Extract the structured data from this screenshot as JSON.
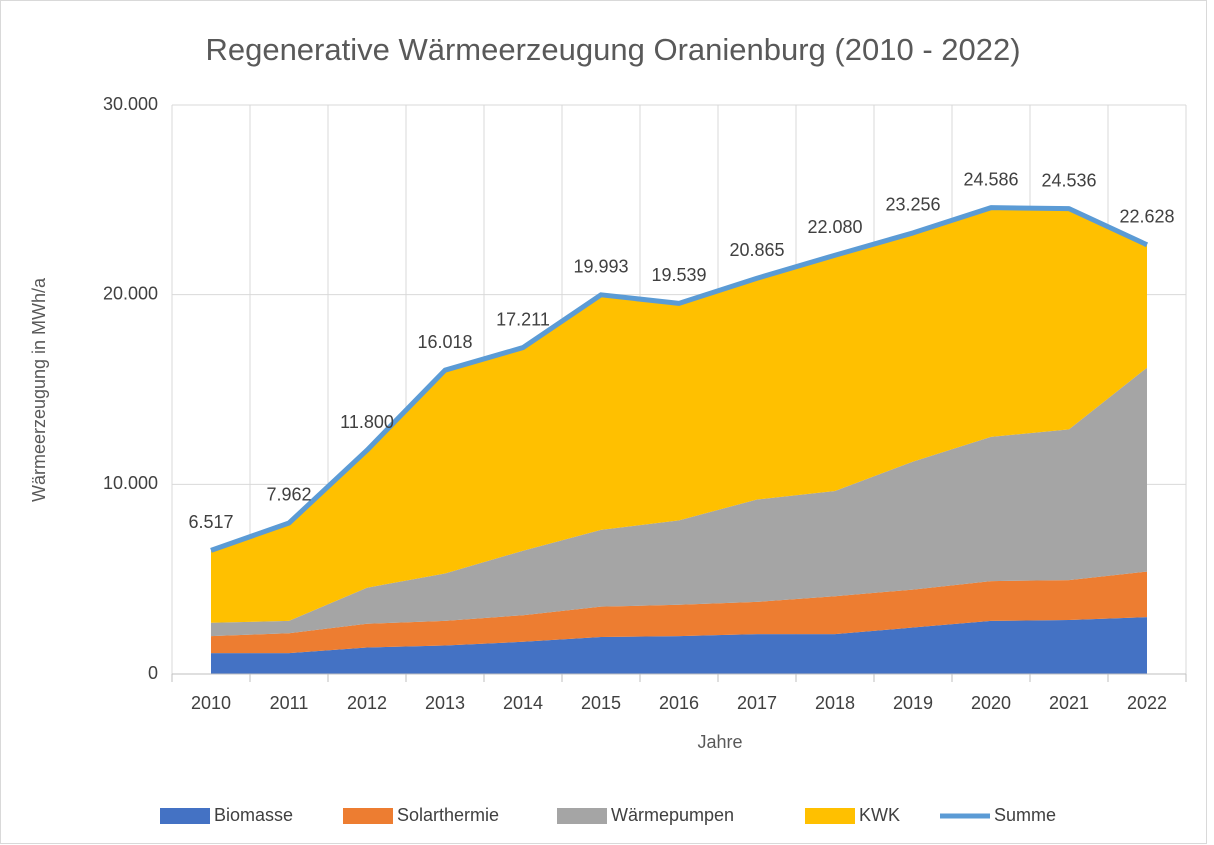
{
  "chart_data": {
    "type": "stacked_area",
    "title": "Regenerative Wärmeerzeugung Oranienburg (2010 - 2022)",
    "x_label": "Jahre",
    "y_label": "Wärmeerzeugung in MWh/a",
    "categories": [
      "2010",
      "2011",
      "2012",
      "2013",
      "2014",
      "2015",
      "2016",
      "2017",
      "2018",
      "2019",
      "2020",
      "2021",
      "2022"
    ],
    "series": [
      {
        "name": "Biomasse",
        "color": "#4472c4",
        "values": [
          1100,
          1100,
          1400,
          1500,
          1700,
          1950,
          2000,
          2100,
          2100,
          2450,
          2800,
          2850,
          3000
        ]
      },
      {
        "name": "Solarthermie",
        "color": "#ed7d31",
        "values": [
          900,
          1050,
          1250,
          1300,
          1400,
          1600,
          1650,
          1700,
          2000,
          2000,
          2100,
          2100,
          2400
        ]
      },
      {
        "name": "Wärmepumpen",
        "color": "#a5a5a5",
        "values": [
          700,
          650,
          1900,
          2500,
          3400,
          4050,
          4450,
          5400,
          5550,
          6750,
          7600,
          7950,
          10750
        ]
      },
      {
        "name": "KWK",
        "color": "#ffc000",
        "values": [
          3800,
          5150,
          7250,
          10700,
          10700,
          12400,
          11450,
          11650,
          12450,
          12050,
          12100,
          11650,
          6500
        ]
      }
    ],
    "total": {
      "name": "Summe",
      "color": "#5b9bd5",
      "values": [
        6517,
        7962,
        11800,
        16018,
        17211,
        19993,
        19539,
        20865,
        22080,
        23256,
        24586,
        24536,
        22628
      ],
      "value_labels": [
        "6.517",
        "7.962",
        "11.800",
        "16.018",
        "17.211",
        "19.993",
        "19.539",
        "20.865",
        "22.080",
        "23.256",
        "24.586",
        "24.536",
        "22.628"
      ]
    },
    "ylim": [
      0,
      30000
    ],
    "yticks": [
      0,
      {
        "value": 10000,
        "label": "10.000"
      },
      {
        "value": 20000,
        "label": "20.000"
      },
      {
        "value": 30000,
        "label": "30.000"
      }
    ],
    "grid": true,
    "legend": "bottom"
  }
}
